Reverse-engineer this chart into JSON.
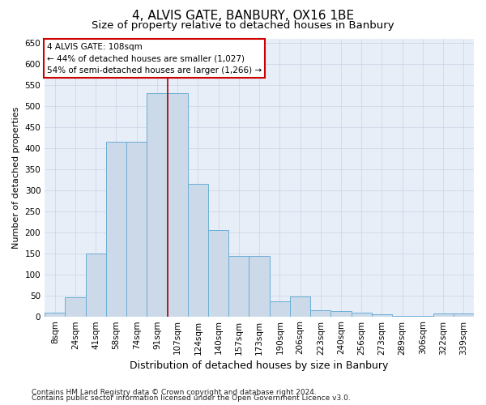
{
  "title": "4, ALVIS GATE, BANBURY, OX16 1BE",
  "subtitle": "Size of property relative to detached houses in Banbury",
  "xlabel": "Distribution of detached houses by size in Banbury",
  "ylabel": "Number of detached properties",
  "categories": [
    "8sqm",
    "24sqm",
    "41sqm",
    "58sqm",
    "74sqm",
    "91sqm",
    "107sqm",
    "124sqm",
    "140sqm",
    "157sqm",
    "173sqm",
    "190sqm",
    "206sqm",
    "223sqm",
    "240sqm",
    "256sqm",
    "273sqm",
    "289sqm",
    "306sqm",
    "322sqm",
    "339sqm"
  ],
  "values": [
    8,
    45,
    150,
    415,
    415,
    530,
    530,
    315,
    205,
    143,
    143,
    35,
    48,
    15,
    13,
    8,
    5,
    2,
    2,
    7,
    7
  ],
  "bar_color": "#ccd9e8",
  "bar_edge_color": "#6aaed6",
  "marker_index": 6,
  "annotation_text": "4 ALVIS GATE: 108sqm\n← 44% of detached houses are smaller (1,027)\n54% of semi-detached houses are larger (1,266) →",
  "annotation_box_color": "#ffffff",
  "annotation_box_edge_color": "#cc0000",
  "vline_color": "#aa0000",
  "ylim": [
    0,
    660
  ],
  "yticks": [
    0,
    50,
    100,
    150,
    200,
    250,
    300,
    350,
    400,
    450,
    500,
    550,
    600,
    650
  ],
  "grid_color": "#c8d4e4",
  "bg_color": "#e8eef8",
  "footer1": "Contains HM Land Registry data © Crown copyright and database right 2024.",
  "footer2": "Contains public sector information licensed under the Open Government Licence v3.0.",
  "title_fontsize": 11,
  "subtitle_fontsize": 9.5,
  "xlabel_fontsize": 9,
  "ylabel_fontsize": 8,
  "tick_fontsize": 7.5,
  "footer_fontsize": 6.5
}
